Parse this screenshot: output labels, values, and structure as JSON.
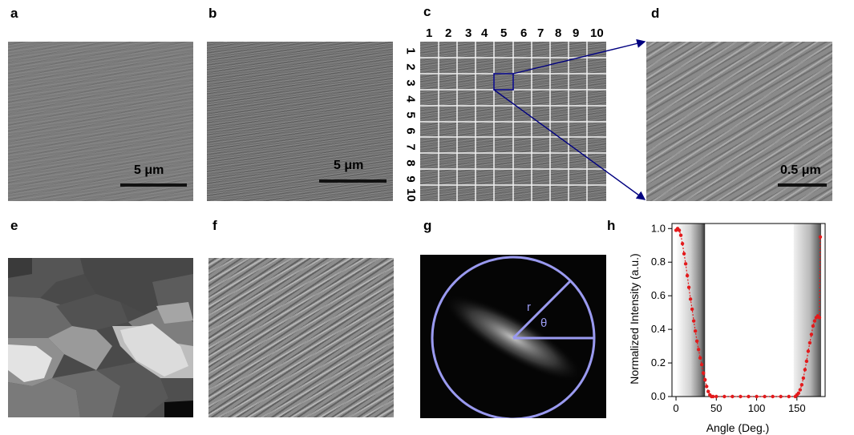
{
  "panels": {
    "a": {
      "label": "a",
      "scale": "5 μm"
    },
    "b": {
      "label": "b",
      "scale": "5 μm"
    },
    "c": {
      "label": "c",
      "col_numbers": [
        "1",
        "2",
        "3",
        "4",
        "5",
        "6",
        "7",
        "8",
        "9",
        "10"
      ],
      "row_numbers": [
        "1",
        "2",
        "3",
        "4",
        "5",
        "6",
        "7",
        "8",
        "9",
        "10"
      ]
    },
    "d": {
      "label": "d",
      "scale": "0.5 μm"
    },
    "e": {
      "label": "e"
    },
    "f": {
      "label": "f"
    },
    "g": {
      "label": "g",
      "r_label": "r",
      "theta_label": "θ"
    },
    "h": {
      "label": "h"
    }
  },
  "colors": {
    "diagram_blue": "#000080",
    "fft_circle": "#9a9af0",
    "curve_red": "#e31a1c"
  },
  "chart_data": {
    "type": "scatter",
    "xlabel": "Angle (Deg.)",
    "ylabel": "Normalized Intensity (a.u.)",
    "xlim": [
      -5,
      185
    ],
    "ylim": [
      0,
      1.03
    ],
    "x_ticks": [
      "0",
      "50",
      "100",
      "150"
    ],
    "y_ticks": [
      "0.0",
      "0.2",
      "0.4",
      "0.6",
      "0.8",
      "1.0"
    ],
    "series": [
      {
        "x": [
          0,
          2,
          4,
          6,
          8,
          10,
          12,
          14,
          16,
          18,
          20,
          22,
          24,
          26,
          28,
          30,
          32,
          34,
          36,
          38,
          40,
          42,
          44,
          46,
          50,
          60,
          70,
          80,
          90,
          100,
          110,
          120,
          130,
          140,
          148,
          150,
          152,
          154,
          156,
          158,
          160,
          162,
          164,
          166,
          168,
          170,
          172,
          174,
          176,
          178,
          179
        ],
        "y": [
          0.99,
          1.0,
          0.99,
          0.96,
          0.91,
          0.85,
          0.79,
          0.72,
          0.65,
          0.58,
          0.52,
          0.45,
          0.39,
          0.33,
          0.28,
          0.23,
          0.19,
          0.14,
          0.1,
          0.06,
          0.03,
          0.01,
          0.0,
          0.0,
          0.0,
          0.0,
          0.0,
          0.0,
          0.0,
          0.0,
          0.0,
          0.0,
          0.0,
          0.0,
          0.0,
          0.01,
          0.02,
          0.04,
          0.07,
          0.11,
          0.16,
          0.21,
          0.27,
          0.32,
          0.37,
          0.42,
          0.45,
          0.47,
          0.48,
          0.47,
          0.95
        ]
      }
    ]
  }
}
